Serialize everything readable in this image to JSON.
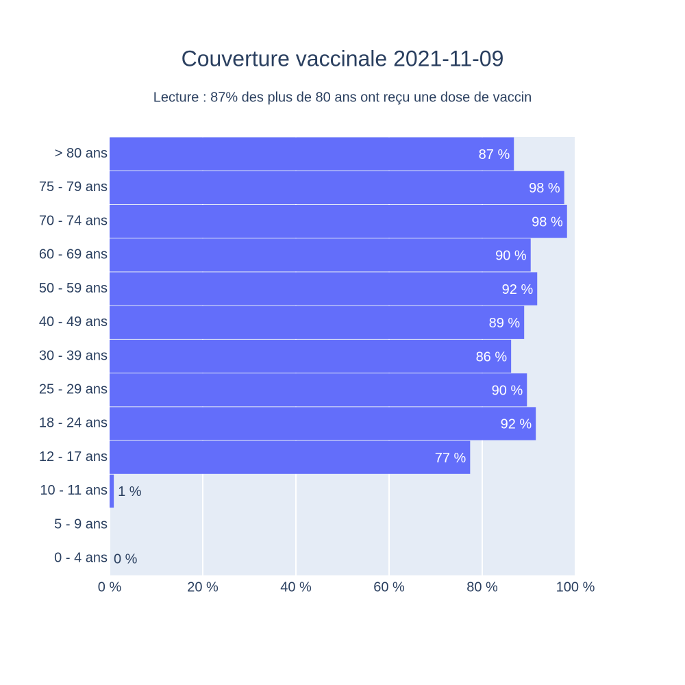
{
  "chart_data": {
    "type": "hbar",
    "title": "Couverture vaccinale 2021-11-09",
    "subtitle": "Lecture : 87% des plus de 80 ans ont reçu une dose de vaccin",
    "categories": [
      "> 80 ans",
      "75 - 79 ans",
      "70 - 74 ans",
      "60 - 69 ans",
      "50 - 59 ans",
      "40 - 49 ans",
      "30 - 39 ans",
      "25 - 29 ans",
      "18 - 24 ans",
      "12 - 17 ans",
      "10 - 11 ans",
      "5 - 9 ans",
      "0 - 4 ans"
    ],
    "values": [
      86.8,
      97.6,
      98.2,
      90.4,
      91.8,
      89.0,
      86.2,
      89.6,
      91.5,
      77.4,
      0.9,
      null,
      0
    ],
    "value_labels": [
      "87 %",
      "98 %",
      "98 %",
      "90 %",
      "92 %",
      "89 %",
      "86 %",
      "90 %",
      "92 %",
      "77 %",
      "1 %",
      null,
      "0 %"
    ],
    "color": "#636efa",
    "xlim": [
      0,
      100
    ],
    "xticks": [
      {
        "value": 0,
        "label": "0 %"
      },
      {
        "value": 20,
        "label": "20 %"
      },
      {
        "value": 40,
        "label": "40 %"
      },
      {
        "value": 60,
        "label": "60 %"
      },
      {
        "value": 80,
        "label": "80 %"
      },
      {
        "value": 100,
        "label": "100 %"
      }
    ],
    "grid": true
  }
}
